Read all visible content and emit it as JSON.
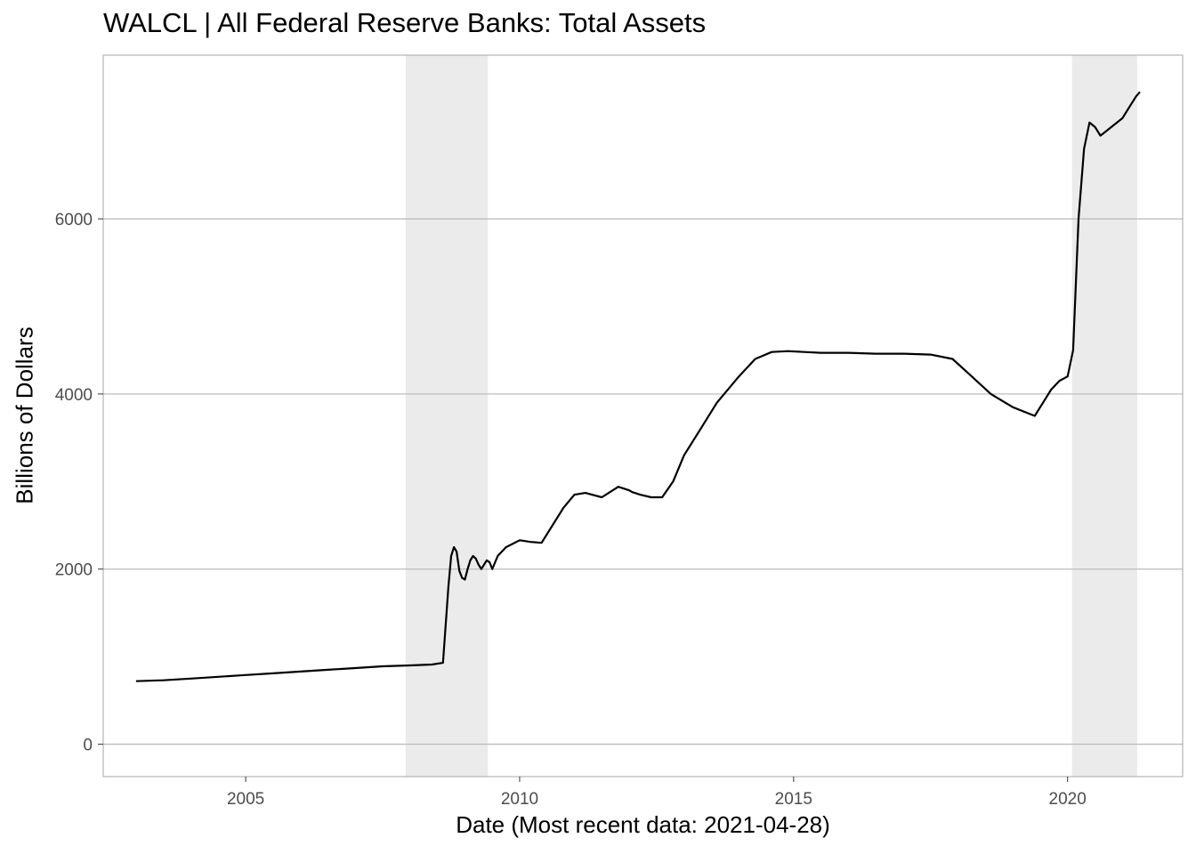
{
  "chart_data": {
    "type": "line",
    "title": "WALCL | All Federal Reserve Banks: Total Assets",
    "xlabel": "Date (Most recent data: 2021-04-28)",
    "ylabel": "Billions of Dollars",
    "xlim": [
      2002.4,
      2022.1
    ],
    "ylim": [
      -370,
      7870
    ],
    "x_ticks": [
      2005,
      2010,
      2015,
      2020
    ],
    "x_tick_labels": [
      "2005",
      "2010",
      "2015",
      "2020"
    ],
    "y_ticks": [
      0,
      2000,
      4000,
      6000
    ],
    "y_tick_labels": [
      "0",
      "2000",
      "4000",
      "6000"
    ],
    "grid": true,
    "line_color": "#000000",
    "recession_shading_color": "#ebebeb",
    "recessions": [
      {
        "start": 2007.92,
        "end": 2009.42
      },
      {
        "start": 2020.08,
        "end": 2021.27
      }
    ],
    "series": [
      {
        "x": [
          2003.0,
          2003.5,
          2004.0,
          2004.5,
          2005.0,
          2005.5,
          2006.0,
          2006.5,
          2007.0,
          2007.5,
          2008.0,
          2008.4,
          2008.6,
          2008.7,
          2008.75,
          2008.8,
          2008.85,
          2008.9,
          2008.95,
          2009.0,
          2009.05,
          2009.1,
          2009.15,
          2009.2,
          2009.25,
          2009.3,
          2009.35,
          2009.4,
          2009.45,
          2009.5,
          2009.6,
          2009.75,
          2010.0,
          2010.2,
          2010.4,
          2010.6,
          2010.8,
          2011.0,
          2011.2,
          2011.5,
          2011.8,
          2012.0,
          2012.05,
          2012.2,
          2012.4,
          2012.6,
          2012.8,
          2013.0,
          2013.3,
          2013.6,
          2014.0,
          2014.3,
          2014.6,
          2014.9,
          2015.2,
          2015.5,
          2016.0,
          2016.5,
          2017.0,
          2017.5,
          2017.9,
          2018.2,
          2018.6,
          2019.0,
          2019.4,
          2019.6,
          2019.7,
          2019.85,
          2020.0,
          2020.1,
          2020.2,
          2020.3,
          2020.4,
          2020.5,
          2020.6,
          2020.7,
          2021.0,
          2021.15,
          2021.25,
          2021.32
        ],
        "values": [
          720,
          730,
          750,
          770,
          790,
          810,
          830,
          850,
          870,
          890,
          900,
          910,
          930,
          1800,
          2150,
          2250,
          2200,
          1980,
          1900,
          1880,
          2000,
          2100,
          2150,
          2120,
          2050,
          2000,
          2050,
          2100,
          2080,
          2000,
          2150,
          2250,
          2330,
          2310,
          2300,
          2500,
          2700,
          2850,
          2870,
          2820,
          2940,
          2900,
          2880,
          2850,
          2820,
          2820,
          3000,
          3300,
          3600,
          3900,
          4200,
          4400,
          4480,
          4490,
          4480,
          4470,
          4470,
          4460,
          4460,
          4450,
          4400,
          4230,
          4000,
          3850,
          3750,
          3950,
          4050,
          4150,
          4200,
          4500,
          6000,
          6800,
          7100,
          7050,
          6950,
          7000,
          7150,
          7300,
          7400,
          7450
        ]
      }
    ]
  }
}
